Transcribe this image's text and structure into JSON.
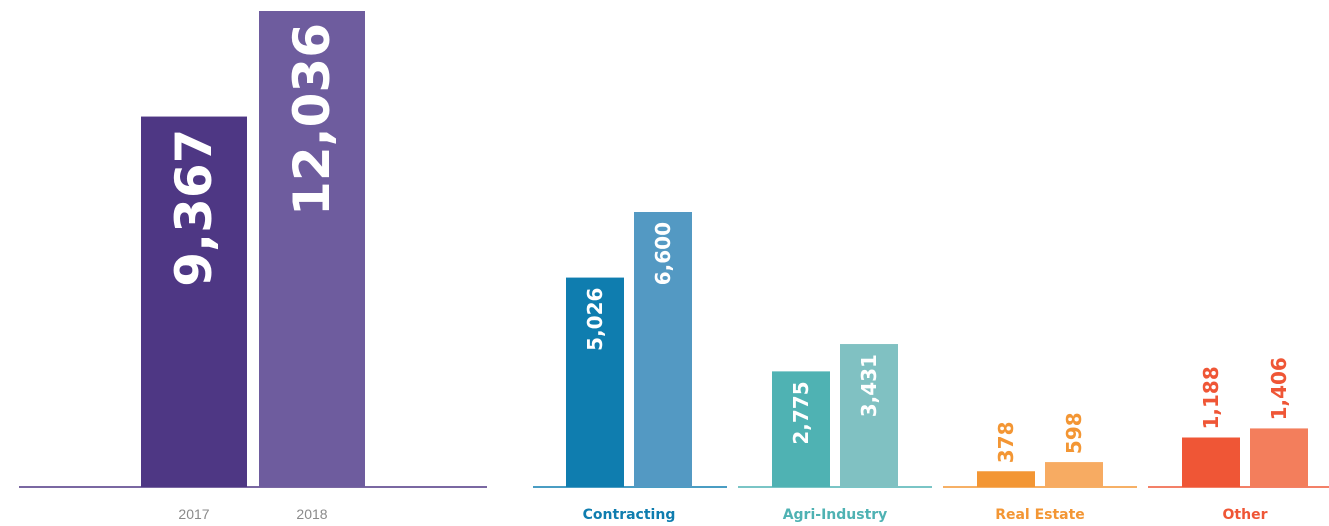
{
  "chart_data": [
    {
      "type": "bar",
      "categories": [
        "2017",
        "2018"
      ],
      "values": [
        9367,
        12036
      ],
      "value_labels": [
        "9,367",
        "12,036"
      ],
      "colors": [
        "#4e3784",
        "#6e5c9e"
      ],
      "axis_color": "#4e3784",
      "value_label_color": "#ffffff",
      "value_label_position": "inside-top-rotated",
      "xlabel": "",
      "ylabel": "",
      "grid": false
    },
    {
      "type": "bar",
      "categories": [
        "Contracting",
        "Agri-Industry",
        "Real Estate",
        "Other"
      ],
      "series": [
        {
          "values": [
            5026,
            2775,
            378,
            1188
          ],
          "value_labels": [
            "5,026",
            "2,775",
            "378",
            "1,188"
          ]
        },
        {
          "values": [
            6600,
            3431,
            598,
            1406
          ],
          "value_labels": [
            "6,600",
            "3,431",
            "598",
            "1,406"
          ]
        }
      ],
      "category_colors": [
        {
          "bar_2017": "#0f7daf",
          "bar_2018": "#5399c3",
          "label": "#0f7daf",
          "axis": "#0f7daf",
          "value_label": "#ffffff",
          "value_label_position": "inside-top-rotated"
        },
        {
          "bar_2017": "#4fb2b3",
          "bar_2018": "#80c1c2",
          "label": "#4fb2b3",
          "axis": "#4fb2b3",
          "value_label": "#ffffff",
          "value_label_position": "inside-top-rotated"
        },
        {
          "bar_2017": "#f39634",
          "bar_2018": "#f7ab62",
          "label": "#f39634",
          "axis": "#f39634",
          "value_label": "#f39634",
          "value_label_position": "above-rotated"
        },
        {
          "bar_2017": "#ef5636",
          "bar_2018": "#f37e5c",
          "label": "#ef5636",
          "axis": "#ef5636",
          "value_label": "#ef5636",
          "value_label_position": "above-rotated"
        }
      ],
      "xlabel": "",
      "ylabel": "",
      "grid": false
    }
  ]
}
